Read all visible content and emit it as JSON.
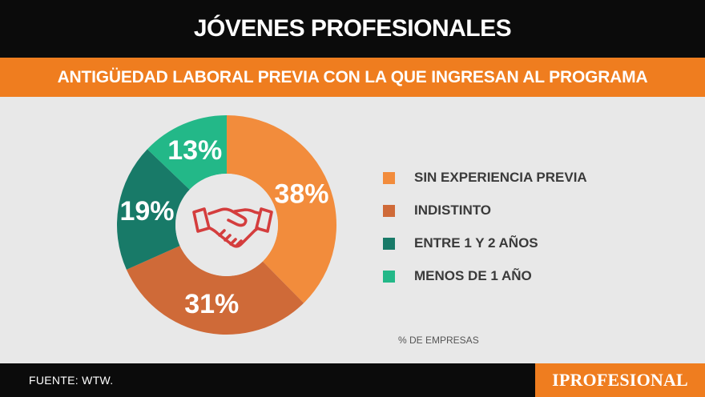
{
  "header": {
    "title": "JÓVENES PROFESIONALES"
  },
  "subheader": {
    "title": "ANTIGÜEDAD LABORAL PREVIA CON LA QUE INGRESAN AL PROGRAMA"
  },
  "chart_data": {
    "type": "pie",
    "variant": "donut",
    "categories": [
      "SIN EXPERIENCIA PREVIA",
      "INDISTINTO",
      "ENTRE 1 Y 2 AÑOS",
      "MENOS DE 1 AÑO"
    ],
    "values": [
      38,
      31,
      19,
      13
    ],
    "data_labels": [
      "38%",
      "31%",
      "19%",
      "13%"
    ],
    "colors": [
      "#f28c3c",
      "#cf6a38",
      "#187a68",
      "#23b888"
    ],
    "legend_position": "right",
    "unit_note": "% DE EMPRESAS",
    "center_icon": "handshake-icon"
  },
  "colors": {
    "header_bg": "#0b0b0b",
    "accent": "#ef7d1f",
    "background": "#e8e8e8",
    "icon": "#d43d3d"
  },
  "footer": {
    "source": "FUENTE: WTW.",
    "brand": "IPROFESIONAL"
  }
}
